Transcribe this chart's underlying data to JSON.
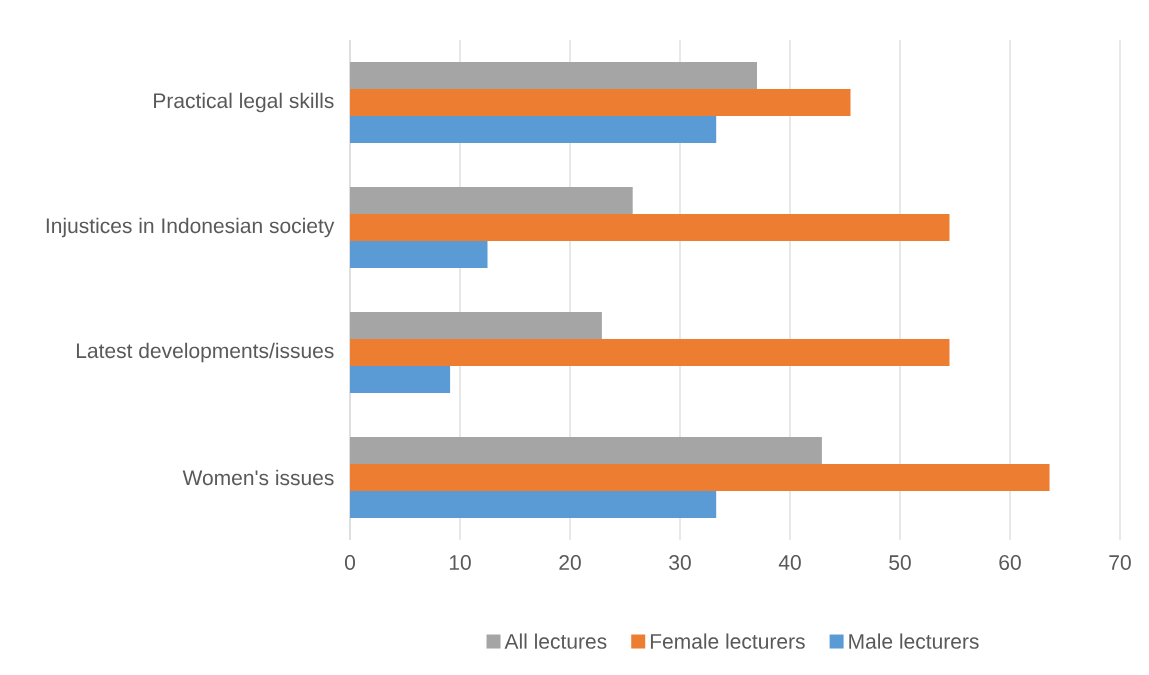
{
  "chart_data": {
    "type": "bar",
    "orientation": "horizontal",
    "categories": [
      "Practical legal skills",
      "Injustices in Indonesian society",
      "Latest developments/issues",
      "Women's issues"
    ],
    "series": [
      {
        "name": "All lectures",
        "color": "#a5a5a5",
        "values": [
          37,
          25.7,
          22.9,
          42.9
        ]
      },
      {
        "name": "Female lecturers",
        "color": "#ed7d31",
        "values": [
          45.5,
          54.5,
          54.5,
          63.6
        ]
      },
      {
        "name": "Male lecturers",
        "color": "#5b9bd5",
        "values": [
          33.3,
          12.5,
          9.1,
          33.3
        ]
      }
    ],
    "xlim": [
      0,
      70
    ],
    "xticks": [
      0,
      10,
      20,
      30,
      40,
      50,
      60,
      70
    ],
    "grid": "x",
    "legend": "bottom"
  }
}
